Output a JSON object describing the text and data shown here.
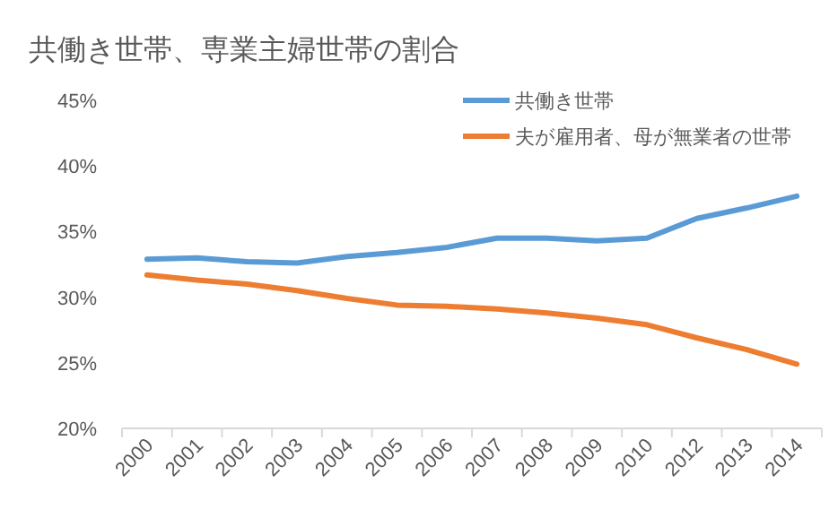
{
  "chart_data": {
    "type": "line",
    "title": "共働き世帯、専業主婦世帯の割合",
    "categories": [
      "2000",
      "2001",
      "2002",
      "2003",
      "2004",
      "2005",
      "2006",
      "2007",
      "2008",
      "2009",
      "2010",
      "2012",
      "2013",
      "2014"
    ],
    "series": [
      {
        "name": "共働き世帯",
        "color": "#5b9bd5",
        "values": [
          32.9,
          33.0,
          32.7,
          32.6,
          33.1,
          33.4,
          33.8,
          34.5,
          34.5,
          34.3,
          34.5,
          36.0,
          36.8,
          37.7
        ]
      },
      {
        "name": "夫が雇用者、母が無業者の世帯",
        "color": "#ed7d31",
        "values": [
          31.7,
          31.3,
          31.0,
          30.5,
          29.9,
          29.4,
          29.3,
          29.1,
          28.8,
          28.4,
          27.9,
          26.9,
          26.0,
          24.9
        ]
      }
    ],
    "ylim": [
      20,
      45
    ],
    "yticks": [
      {
        "value": 20,
        "label": "20%"
      },
      {
        "value": 25,
        "label": "25%"
      },
      {
        "value": 30,
        "label": "30%"
      },
      {
        "value": 35,
        "label": "35%"
      },
      {
        "value": 40,
        "label": "40%"
      },
      {
        "value": 45,
        "label": "45%"
      }
    ],
    "legend": "top right",
    "marker": "none",
    "line_style": "solid"
  }
}
